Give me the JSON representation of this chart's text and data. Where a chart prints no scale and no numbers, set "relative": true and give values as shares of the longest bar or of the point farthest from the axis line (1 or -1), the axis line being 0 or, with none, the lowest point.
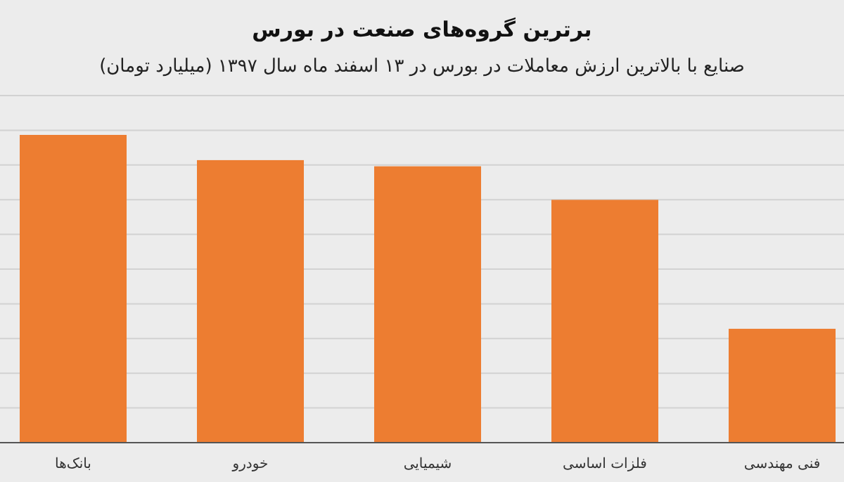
{
  "chart_data": {
    "type": "bar",
    "title": "برترین گروه‌های صنعت در بورس",
    "subtitle": "صنایع با بالاترین ارزش معاملات در بورس در ۱۳ اسفند ماه سال ۱۳۹۷ (میلیارد تومان)",
    "categories": [
      "بانک‌ها",
      "خودرو",
      "شیمیایی",
      "فلزات اساسی",
      "فنی مهندسی"
    ],
    "values": [
      1,
      0.918,
      0.898,
      0.789,
      0.37
    ],
    "color": "#ed7d31",
    "relative": true,
    "grid": "y"
  }
}
